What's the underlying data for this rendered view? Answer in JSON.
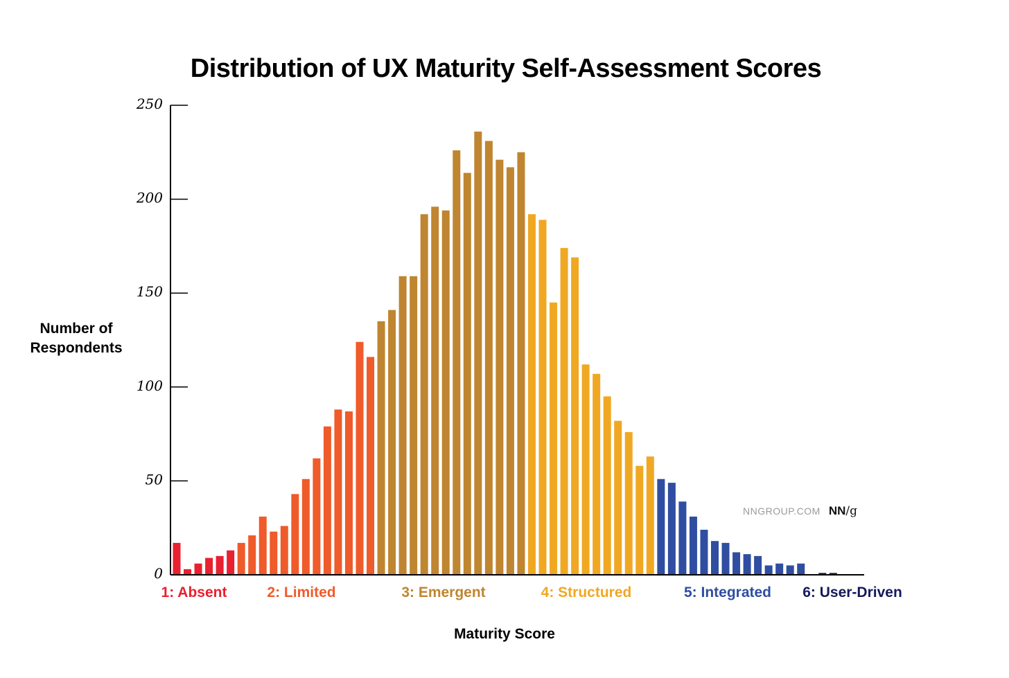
{
  "chart_data": {
    "type": "bar",
    "title": "Distribution of UX Maturity Self-Assessment Scores",
    "xlabel": "Maturity Score",
    "ylabel": [
      "Number of",
      "Respondents"
    ],
    "ylim": [
      0,
      250
    ],
    "yticks": [
      0,
      50,
      100,
      150,
      200,
      250
    ],
    "grid": false,
    "stages": [
      {
        "label": "1: Absent",
        "color": "#e8202f",
        "values": [
          17,
          3,
          6,
          9,
          10,
          13
        ]
      },
      {
        "label": "2: Limited",
        "color": "#ef5b2a",
        "values": [
          17,
          21,
          31,
          23,
          26,
          43,
          51,
          62,
          79,
          88,
          87,
          124,
          116
        ]
      },
      {
        "label": "3: Emergent",
        "color": "#bf8530",
        "values": [
          135,
          141,
          159,
          159,
          192,
          196,
          194,
          226,
          214,
          236,
          231,
          221,
          217,
          225
        ]
      },
      {
        "label": "4: Structured",
        "color": "#f0a823",
        "values": [
          192,
          189,
          145,
          174,
          169,
          112,
          107,
          95,
          82,
          76,
          58,
          63
        ]
      },
      {
        "label": "5: Integrated",
        "color": "#2f4ea1",
        "values": [
          51,
          49,
          39,
          31,
          24,
          18,
          17,
          12,
          11,
          10,
          5,
          6,
          5,
          6
        ]
      },
      {
        "label": "6: User-Driven",
        "color": "#15195a",
        "values": [
          0,
          1,
          1
        ]
      }
    ]
  },
  "watermark": {
    "site": "NNGROUP.COM",
    "logo_bold": "NN",
    "logo_rest": "/g"
  }
}
